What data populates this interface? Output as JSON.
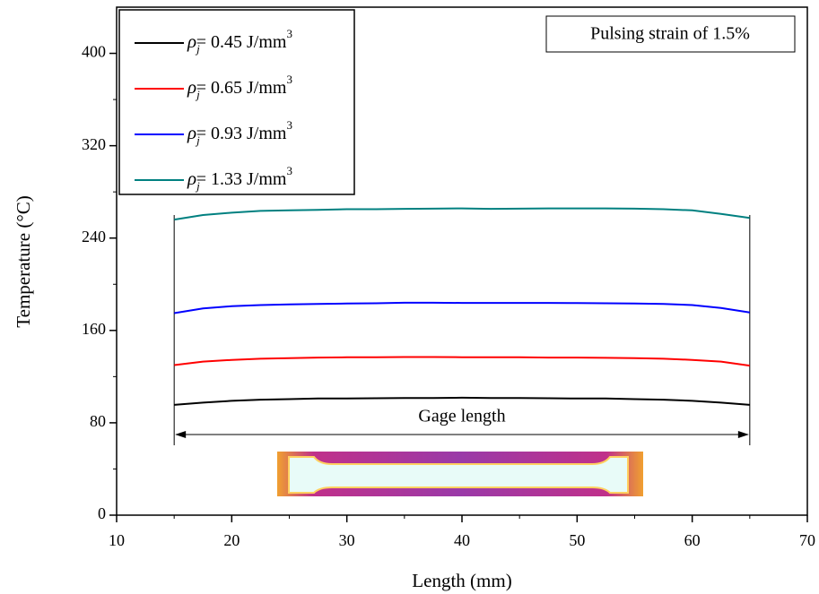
{
  "chart_data": {
    "type": "line",
    "x_label": "Length (mm)",
    "y_label": "Temperature (°C)",
    "annotations": [
      "Pulsing strain of 1.5%",
      "Gage length"
    ],
    "x": [
      15,
      17.5,
      20,
      22.5,
      25,
      27.5,
      30,
      32.5,
      35,
      37.5,
      40,
      42.5,
      45,
      47.5,
      50,
      52.5,
      55,
      57.5,
      60,
      62.5,
      65
    ],
    "series": [
      {
        "name": "ρj= 0.45 J/mm3",
        "color": "#000000",
        "values": [
          95.5,
          97.5,
          99,
          100,
          100.5,
          101,
          101,
          101.3,
          101.5,
          101.5,
          101.7,
          101.5,
          101.5,
          101.3,
          101,
          101,
          100.5,
          100,
          99,
          97.5,
          95.5
        ]
      },
      {
        "name": "ρj= 0.65 J/mm3",
        "color": "#ff0000",
        "values": [
          130,
          133,
          134.5,
          135.5,
          136,
          136.5,
          136.7,
          136.8,
          137,
          137,
          136.8,
          136.8,
          136.7,
          136.5,
          136.5,
          136.3,
          136,
          135.5,
          134.5,
          133,
          129.5
        ]
      },
      {
        "name": "ρj= 0.93 J/mm3",
        "color": "#0000ff",
        "values": [
          175,
          179,
          181,
          182,
          182.5,
          183,
          183.3,
          183.5,
          184,
          184,
          183.8,
          183.8,
          183.8,
          183.8,
          183.7,
          183.5,
          183.3,
          183,
          182,
          179.5,
          175.5
        ]
      },
      {
        "name": "ρj= 1.33 J/mm3",
        "color": "#008080",
        "values": [
          256,
          260,
          262,
          263.5,
          264,
          264.5,
          265,
          265,
          265.3,
          265.5,
          265.7,
          265.3,
          265.5,
          265.7,
          265.7,
          265.7,
          265.5,
          265,
          264,
          261,
          257.5
        ]
      }
    ],
    "xlim": [
      10,
      70
    ],
    "xticks": [
      10,
      20,
      30,
      40,
      50,
      60,
      70
    ],
    "ylim": [
      0,
      440
    ],
    "yticks": [
      0,
      80,
      160,
      240,
      320,
      400
    ],
    "legend": "upper left",
    "grid": false
  }
}
